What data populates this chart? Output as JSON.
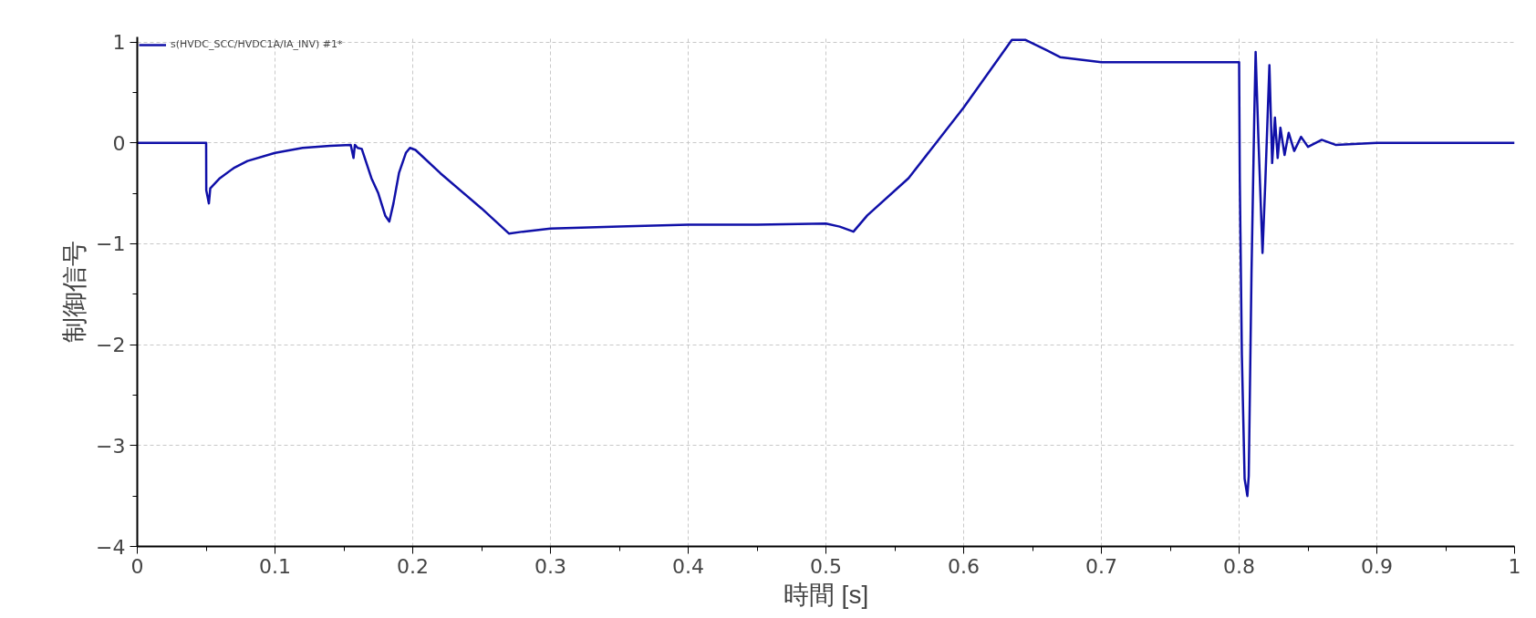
{
  "chart_data": {
    "type": "line",
    "xlabel": "時間 [s]",
    "ylabel": "制御信号",
    "xlim": [
      0,
      1
    ],
    "ylim": [
      -4,
      1.05
    ],
    "xticks": [
      0,
      0.1,
      0.2,
      0.3,
      0.4,
      0.5,
      0.6,
      0.7,
      0.8,
      0.9,
      1
    ],
    "yticks": [
      -4,
      -3,
      -2,
      -1,
      0,
      1
    ],
    "grid": true,
    "legend": "top left",
    "line_style": "solid",
    "marker": "none",
    "series": [
      {
        "name": "s(HVDC_SCC/HVDC1A/IA_INV) #1*",
        "color": "#1010a8",
        "x": [
          0,
          0.05,
          0.0501,
          0.052,
          0.053,
          0.06,
          0.07,
          0.08,
          0.1,
          0.12,
          0.14,
          0.155,
          0.157,
          0.158,
          0.16,
          0.163,
          0.17,
          0.175,
          0.18,
          0.183,
          0.186,
          0.19,
          0.195,
          0.198,
          0.202,
          0.22,
          0.25,
          0.27,
          0.28,
          0.3,
          0.35,
          0.4,
          0.45,
          0.5,
          0.51,
          0.52,
          0.53,
          0.56,
          0.6,
          0.635,
          0.645,
          0.66,
          0.67,
          0.7,
          0.75,
          0.8,
          0.8005,
          0.802,
          0.804,
          0.806,
          0.807,
          0.809,
          0.811,
          0.812,
          0.814,
          0.817,
          0.819,
          0.822,
          0.824,
          0.826,
          0.828,
          0.83,
          0.833,
          0.836,
          0.84,
          0.845,
          0.85,
          0.86,
          0.87,
          0.9,
          0.95,
          1
        ],
        "values": [
          0,
          0,
          -0.47,
          -0.6,
          -0.45,
          -0.35,
          -0.25,
          -0.18,
          -0.1,
          -0.05,
          -0.03,
          -0.02,
          -0.15,
          -0.02,
          -0.05,
          -0.06,
          -0.35,
          -0.5,
          -0.72,
          -0.78,
          -0.6,
          -0.3,
          -0.1,
          -0.05,
          -0.07,
          -0.3,
          -0.65,
          -0.9,
          -0.88,
          -0.85,
          -0.83,
          -0.81,
          -0.81,
          -0.8,
          -0.83,
          -0.88,
          -0.72,
          -0.35,
          0.35,
          1.02,
          1.02,
          0.92,
          0.85,
          0.8,
          0.8,
          0.8,
          -0.36,
          -2.1,
          -3.33,
          -3.5,
          -3.3,
          -1.29,
          0.25,
          0.9,
          0.05,
          -1.09,
          -0.4,
          0.77,
          -0.2,
          0.25,
          -0.15,
          0.15,
          -0.12,
          0.1,
          -0.08,
          0.06,
          -0.04,
          0.03,
          -0.02,
          0,
          0,
          0
        ]
      }
    ]
  }
}
